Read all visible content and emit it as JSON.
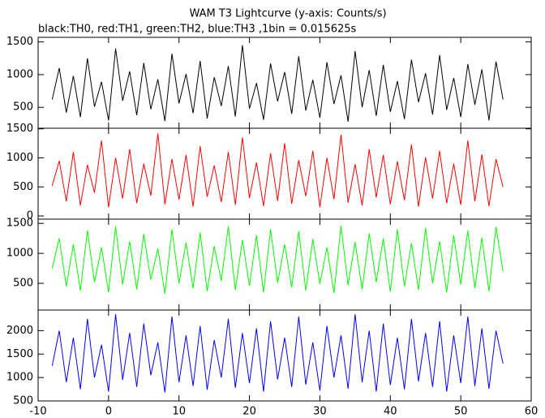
{
  "chart_data": [
    {
      "type": "line",
      "title": "WAM T3 Lightcurve (y-axis: Counts/s)",
      "subtitle": "black:TH0, red:TH1, green:TH2, blue:TH3 ,1bin = 0.015625s",
      "x": [
        -8,
        -7,
        -6,
        -5,
        -4,
        -3,
        -2,
        -1,
        0,
        1,
        2,
        3,
        4,
        5,
        6,
        7,
        8,
        9,
        10,
        11,
        12,
        13,
        14,
        15,
        16,
        17,
        18,
        19,
        20,
        21,
        22,
        23,
        24,
        25,
        26,
        27,
        28,
        29,
        30,
        31,
        32,
        33,
        34,
        35,
        36,
        37,
        38,
        39,
        40,
        41,
        42,
        43,
        44,
        45,
        46,
        47,
        48,
        49,
        50,
        51,
        52,
        53,
        54,
        55,
        56
      ],
      "series": [
        {
          "color": "#000000",
          "values": [
            620,
            1100,
            420,
            980,
            350,
            1250,
            510,
            890,
            300,
            1400,
            600,
            1050,
            380,
            1180,
            470,
            930,
            290,
            1320,
            560,
            1010,
            410,
            1210,
            330,
            960,
            520,
            1130,
            360,
            1450,
            480,
            870,
            310,
            1170,
            590,
            1040,
            400,
            1280,
            450,
            920,
            340,
            1190,
            550,
            990,
            280,
            1360,
            500,
            1070,
            370,
            1150,
            430,
            900,
            320,
            1230,
            580,
            1020,
            390,
            1300,
            460,
            950,
            350,
            1160,
            540,
            1080,
            300,
            1200,
            620
          ]
        }
      ],
      "xlim": [
        -10,
        60
      ],
      "xticks": [
        -10,
        0,
        10,
        20,
        30,
        40,
        50,
        60
      ],
      "ylim": [
        180,
        1570
      ],
      "yticks": [
        500,
        1000,
        1500
      ]
    },
    {
      "type": "line",
      "x": [
        -8,
        -7,
        -6,
        -5,
        -4,
        -3,
        -2,
        -1,
        0,
        1,
        2,
        3,
        4,
        5,
        6,
        7,
        8,
        9,
        10,
        11,
        12,
        13,
        14,
        15,
        16,
        17,
        18,
        19,
        20,
        21,
        22,
        23,
        24,
        25,
        26,
        27,
        28,
        29,
        30,
        31,
        32,
        33,
        34,
        35,
        36,
        37,
        38,
        39,
        40,
        41,
        42,
        43,
        44,
        45,
        46,
        47,
        48,
        49,
        50,
        51,
        52,
        53,
        54,
        55,
        56
      ],
      "series": [
        {
          "color": "#ff0000",
          "values": [
            520,
            950,
            250,
            1100,
            180,
            880,
            400,
            1300,
            150,
            1000,
            300,
            1150,
            220,
            900,
            350,
            1420,
            200,
            980,
            280,
            1050,
            160,
            1200,
            330,
            870,
            240,
            1100,
            190,
            1350,
            310,
            920,
            170,
            1080,
            260,
            1250,
            210,
            960,
            340,
            1120,
            150,
            1000,
            290,
            1400,
            230,
            890,
            180,
            1150,
            320,
            1050,
            200,
            940,
            270,
            1230,
            160,
            1010,
            300,
            1120,
            220,
            900,
            190,
            1300,
            250,
            1060,
            170,
            980,
            500
          ]
        }
      ],
      "xlim": [
        -10,
        60
      ],
      "xticks": [
        -10,
        0,
        10,
        20,
        30,
        40,
        50,
        60
      ],
      "ylim": [
        -55,
        1510
      ],
      "yticks": [
        0,
        500,
        1000,
        1500
      ]
    },
    {
      "type": "line",
      "x": [
        -8,
        -7,
        -6,
        -5,
        -4,
        -3,
        -2,
        -1,
        0,
        1,
        2,
        3,
        4,
        5,
        6,
        7,
        8,
        9,
        10,
        11,
        12,
        13,
        14,
        15,
        16,
        17,
        18,
        19,
        20,
        21,
        22,
        23,
        24,
        25,
        26,
        27,
        28,
        29,
        30,
        31,
        32,
        33,
        34,
        35,
        36,
        37,
        38,
        39,
        40,
        41,
        42,
        43,
        44,
        45,
        46,
        47,
        48,
        49,
        50,
        51,
        52,
        53,
        54,
        55,
        56
      ],
      "series": [
        {
          "color": "#00ff00",
          "values": [
            750,
            1250,
            450,
            1150,
            380,
            1380,
            520,
            1100,
            350,
            1450,
            480,
            1200,
            400,
            1320,
            560,
            1080,
            330,
            1400,
            500,
            1180,
            420,
            1350,
            370,
            1120,
            540,
            1450,
            390,
            1220,
            460,
            1300,
            350,
            1400,
            510,
            1150,
            430,
            1370,
            380,
            1240,
            490,
            1100,
            340,
            1460,
            470,
            1190,
            400,
            1330,
            520,
            1250,
            360,
            1400,
            450,
            1170,
            390,
            1420,
            500,
            1200,
            350,
            1300,
            480,
            1380,
            420,
            1260,
            370,
            1440,
            700
          ]
        }
      ],
      "xlim": [
        -10,
        60
      ],
      "xticks": [
        -10,
        0,
        10,
        20,
        30,
        40,
        50,
        60
      ],
      "ylim": [
        55,
        1570
      ],
      "yticks": [
        500,
        1000,
        1500
      ]
    },
    {
      "type": "line",
      "x": [
        -8,
        -7,
        -6,
        -5,
        -4,
        -3,
        -2,
        -1,
        0,
        1,
        2,
        3,
        4,
        5,
        6,
        7,
        8,
        9,
        10,
        11,
        12,
        13,
        14,
        15,
        16,
        17,
        18,
        19,
        20,
        21,
        22,
        23,
        24,
        25,
        26,
        27,
        28,
        29,
        30,
        31,
        32,
        33,
        34,
        35,
        36,
        37,
        38,
        39,
        40,
        41,
        42,
        43,
        44,
        45,
        46,
        47,
        48,
        49,
        50,
        51,
        52,
        53,
        54,
        55,
        56
      ],
      "series": [
        {
          "color": "#0000ff",
          "values": [
            1250,
            2000,
            900,
            1850,
            750,
            2250,
            1000,
            1700,
            700,
            2350,
            950,
            1950,
            800,
            2150,
            1050,
            1750,
            680,
            2300,
            900,
            1900,
            820,
            2100,
            740,
            1800,
            1000,
            2250,
            780,
            1950,
            880,
            2050,
            700,
            2200,
            960,
            1850,
            800,
            2300,
            850,
            1750,
            720,
            2100,
            1000,
            1900,
            760,
            2350,
            900,
            2000,
            700,
            2150,
            840,
            1850,
            750,
            2250,
            920,
            1950,
            800,
            2200,
            700,
            1900,
            880,
            2300,
            820,
            2050,
            760,
            2000,
            1300
          ]
        }
      ],
      "xlim": [
        -10,
        60
      ],
      "xticks": [
        -10,
        0,
        10,
        20,
        30,
        40,
        50,
        60
      ],
      "ylim": [
        500,
        2440
      ],
      "yticks": [
        500,
        1000,
        1500,
        2000
      ]
    }
  ]
}
